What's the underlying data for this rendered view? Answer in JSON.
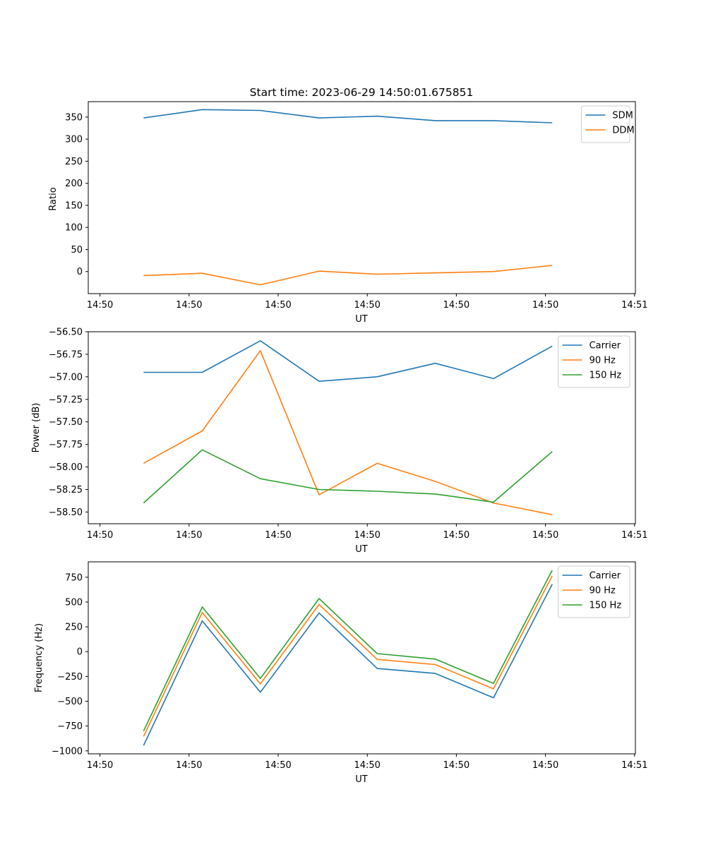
{
  "colors": {
    "blue": "#1f77b4",
    "orange": "#ff7f0e",
    "green": "#2ca02c"
  },
  "chart_data": [
    {
      "type": "line",
      "title": "Start time: 2023-06-29 14:50:01.675851",
      "xlabel": "UT",
      "ylabel": "Ratio",
      "xticks": [
        "14:50",
        "14:50",
        "14:50",
        "14:50",
        "14:50",
        "14:50",
        "14:51"
      ],
      "ylim": [
        -50,
        385
      ],
      "yticks": [
        0,
        50,
        100,
        150,
        200,
        250,
        300,
        350
      ],
      "yticklabels": [
        "0",
        "50",
        "100",
        "150",
        "200",
        "250",
        "300",
        "350"
      ],
      "legend_position": "upper right",
      "series": [
        {
          "name": "SDM",
          "color": "#1f77b4",
          "values": [
            348,
            367,
            365,
            348,
            352,
            342,
            342,
            337
          ]
        },
        {
          "name": "DDM",
          "color": "#ff7f0e",
          "values": [
            -9,
            -4,
            -30,
            1,
            -6,
            -3,
            0,
            14
          ]
        }
      ]
    },
    {
      "type": "line",
      "title": "",
      "xlabel": "UT",
      "ylabel": "Power (dB)",
      "xticks": [
        "14:50",
        "14:50",
        "14:50",
        "14:50",
        "14:50",
        "14:50",
        "14:51"
      ],
      "ylim": [
        -58.63,
        -56.5
      ],
      "yticks": [
        -56.5,
        -56.75,
        -57.0,
        -57.25,
        -57.5,
        -57.75,
        -58.0,
        -58.25,
        -58.5
      ],
      "yticklabels": [
        "−56.50",
        "−56.75",
        "−57.00",
        "−57.25",
        "−57.50",
        "−57.75",
        "−58.00",
        "−58.25",
        "−58.50"
      ],
      "legend_position": "upper right",
      "series": [
        {
          "name": "Carrier",
          "color": "#1f77b4",
          "values": [
            -56.95,
            -56.95,
            -56.6,
            -57.05,
            -57.0,
            -56.85,
            -57.02,
            -56.66
          ]
        },
        {
          "name": "90 Hz",
          "color": "#ff7f0e",
          "values": [
            -57.96,
            -57.6,
            -56.71,
            -58.31,
            -57.96,
            -58.16,
            -58.4,
            -58.53
          ]
        },
        {
          "name": "150 Hz",
          "color": "#2ca02c",
          "values": [
            -58.4,
            -57.81,
            -58.13,
            -58.25,
            -58.27,
            -58.3,
            -58.39,
            -57.83
          ]
        }
      ]
    },
    {
      "type": "line",
      "title": "",
      "xlabel": "UT",
      "ylabel": "Frequency (Hz)",
      "xticks": [
        "14:50",
        "14:50",
        "14:50",
        "14:50",
        "14:50",
        "14:50",
        "14:51"
      ],
      "ylim": [
        -1030,
        905
      ],
      "yticks": [
        750,
        500,
        250,
        0,
        -250,
        -500,
        -750,
        -1000
      ],
      "yticklabels": [
        "750",
        "500",
        "250",
        "0",
        "−250",
        "−500",
        "−750",
        "−1000"
      ],
      "legend_position": "upper right",
      "series": [
        {
          "name": "Carrier",
          "color": "#1f77b4",
          "values": [
            -945,
            310,
            -410,
            390,
            -170,
            -220,
            -465,
            680
          ]
        },
        {
          "name": "90 Hz",
          "color": "#ff7f0e",
          "values": [
            -855,
            395,
            -325,
            475,
            -78,
            -130,
            -375,
            765
          ]
        },
        {
          "name": "150 Hz",
          "color": "#2ca02c",
          "values": [
            -800,
            450,
            -270,
            535,
            -20,
            -75,
            -320,
            820
          ]
        }
      ]
    }
  ]
}
